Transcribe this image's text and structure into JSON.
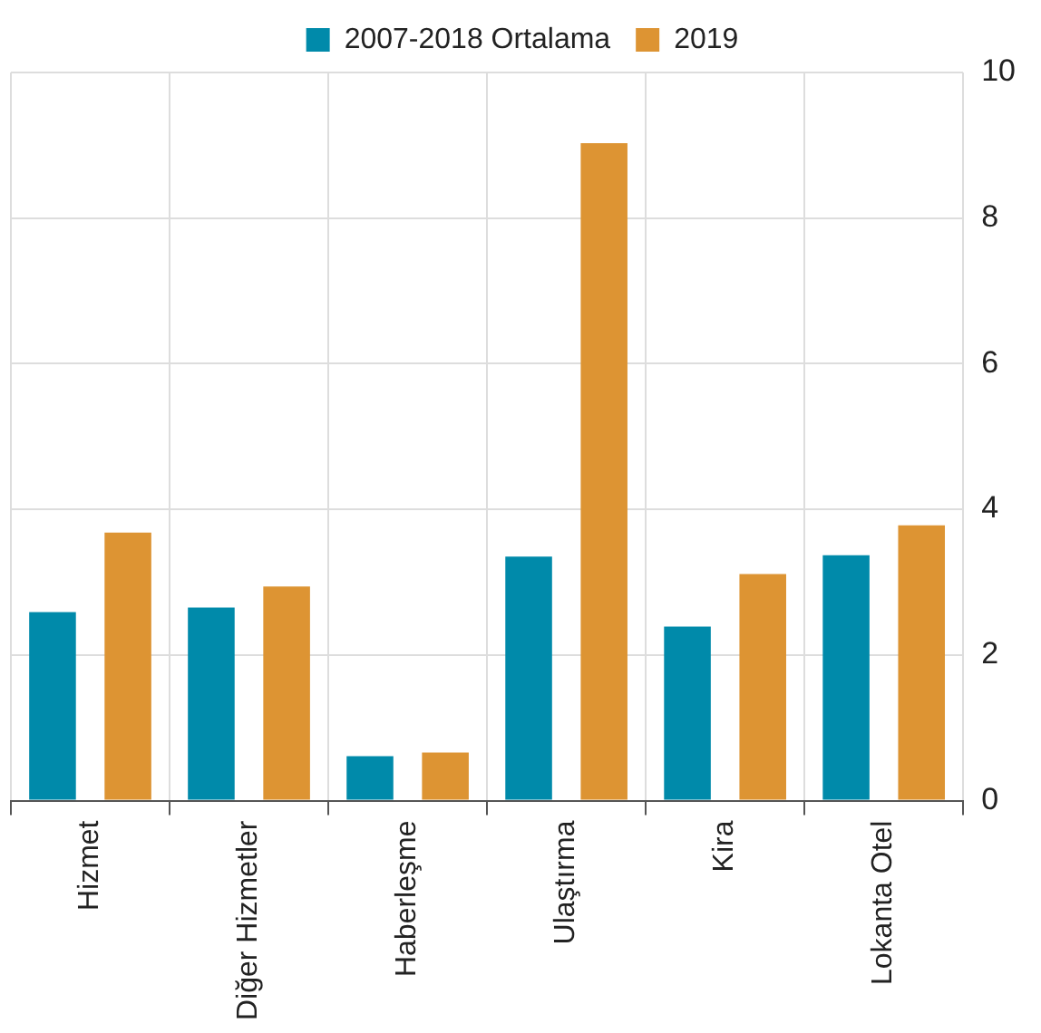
{
  "chart_data": {
    "type": "bar",
    "categories": [
      "Hizmet",
      "Diğer Hizmetler",
      "Haberleşme",
      "Ulaştırma",
      "Kira",
      "Lokanta Otel"
    ],
    "series": [
      {
        "name": "2007-2018 Ortalama",
        "color": "#008aaa",
        "values": [
          2.59,
          2.65,
          0.61,
          3.35,
          2.39,
          3.37
        ]
      },
      {
        "name": "2019",
        "color": "#dd9433",
        "values": [
          3.68,
          2.94,
          0.66,
          9.03,
          3.11,
          3.78
        ]
      }
    ],
    "ylim": [
      0,
      10
    ],
    "yticks": [
      0,
      2,
      4,
      6,
      8,
      10
    ],
    "grid": true,
    "legend": "top"
  }
}
